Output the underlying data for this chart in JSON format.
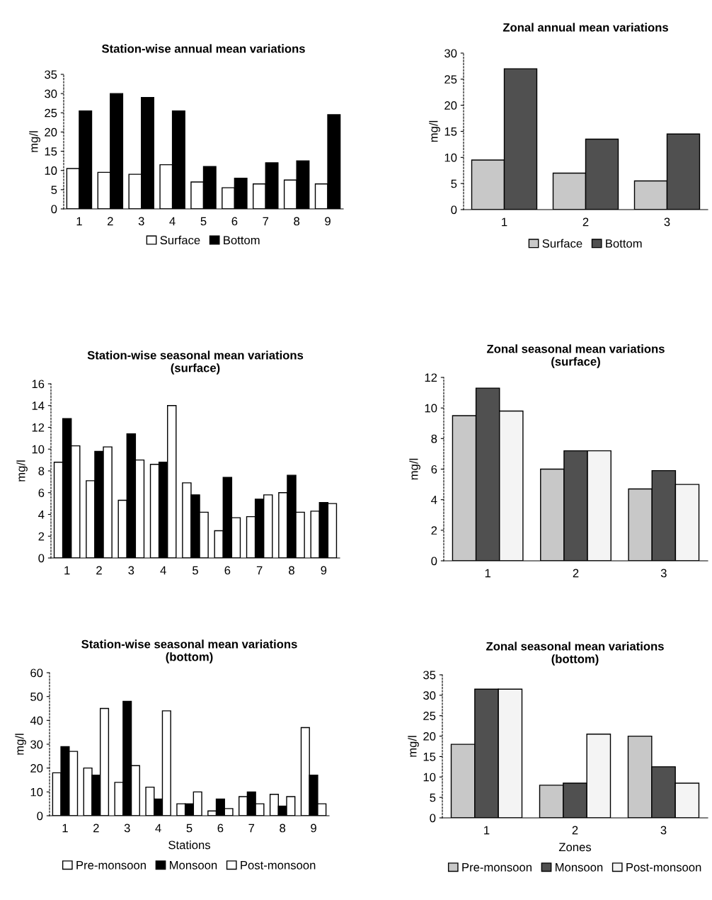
{
  "chart_data": [
    {
      "type": "bar",
      "title": "Station-wise annual mean variations",
      "ylabel": "mg/l",
      "categories": [
        "1",
        "2",
        "3",
        "4",
        "5",
        "6",
        "7",
        "8",
        "9"
      ],
      "series": [
        {
          "name": "Surface",
          "color": "#ffffff",
          "values": [
            10.5,
            9.5,
            9,
            11.5,
            7,
            5.5,
            6.5,
            7.5,
            6.5
          ]
        },
        {
          "name": "Bottom",
          "color": "#000000",
          "values": [
            25.5,
            30,
            29,
            25.5,
            11,
            8,
            12,
            12.5,
            24.5
          ]
        }
      ],
      "ylim": [
        0,
        35
      ],
      "yticks": [
        0,
        5,
        10,
        15,
        20,
        25,
        30,
        35
      ],
      "legend": "bottom"
    },
    {
      "type": "bar",
      "title": "Zonal annual mean variations",
      "ylabel": "mg/l",
      "categories": [
        "1",
        "2",
        "3"
      ],
      "series": [
        {
          "name": "Surface",
          "color": "#c8c8c8",
          "values": [
            9.5,
            7,
            5.5
          ]
        },
        {
          "name": "Bottom",
          "color": "#505050",
          "values": [
            27,
            13.5,
            14.5
          ]
        }
      ],
      "ylim": [
        0,
        30
      ],
      "yticks": [
        0,
        5,
        10,
        15,
        20,
        25,
        30
      ],
      "legend": "bottom"
    },
    {
      "type": "bar",
      "title": "Station-wise seasonal mean variations\n(surface)",
      "ylabel": "mg/l",
      "categories": [
        "1",
        "2",
        "3",
        "4",
        "5",
        "6",
        "7",
        "8",
        "9"
      ],
      "series": [
        {
          "color": "#ffffff",
          "values": [
            8.8,
            7.1,
            5.3,
            8.6,
            6.9,
            2.5,
            3.8,
            6.0,
            4.3
          ]
        },
        {
          "color": "#000000",
          "values": [
            12.8,
            9.8,
            11.4,
            8.8,
            5.8,
            7.4,
            5.4,
            7.6,
            5.1
          ]
        },
        {
          "color": "#ffffff",
          "values": [
            10.3,
            10.2,
            9.0,
            14.0,
            4.2,
            3.7,
            5.8,
            4.2,
            5.0
          ]
        }
      ],
      "ylim": [
        0,
        16
      ],
      "yticks": [
        0,
        2,
        4,
        6,
        8,
        10,
        12,
        14,
        16
      ]
    },
    {
      "type": "bar",
      "title": "Zonal seasonal mean variations\n(surface)",
      "ylabel": "mg/l",
      "categories": [
        "1",
        "2",
        "3"
      ],
      "series": [
        {
          "color": "#c8c8c8",
          "values": [
            9.5,
            6.0,
            4.7
          ]
        },
        {
          "color": "#505050",
          "values": [
            11.3,
            7.2,
            5.9
          ]
        },
        {
          "color": "#f4f4f4",
          "values": [
            9.8,
            7.2,
            5.0
          ]
        }
      ],
      "ylim": [
        0,
        12
      ],
      "yticks": [
        0,
        2,
        4,
        6,
        8,
        10,
        12
      ]
    },
    {
      "type": "bar",
      "title": "Station-wise seasonal mean variations\n(bottom)",
      "xlabel": "Stations",
      "ylabel": "mg/l",
      "categories": [
        "1",
        "2",
        "3",
        "4",
        "5",
        "6",
        "7",
        "8",
        "9"
      ],
      "series": [
        {
          "name": "Pre-monsoon",
          "color": "#ffffff",
          "values": [
            18,
            20,
            14,
            12,
            5,
            2,
            8,
            9,
            37
          ]
        },
        {
          "name": "Monsoon",
          "color": "#000000",
          "values": [
            29,
            17,
            48,
            7,
            5,
            7,
            10,
            4,
            17
          ]
        },
        {
          "name": "Post-monsoon",
          "color": "#ffffff",
          "values": [
            27,
            45,
            21,
            44,
            10,
            3,
            5,
            8,
            5
          ]
        }
      ],
      "ylim": [
        0,
        60
      ],
      "yticks": [
        0,
        10,
        20,
        30,
        40,
        50,
        60
      ],
      "legend": "bottom"
    },
    {
      "type": "bar",
      "title": "Zonal seasonal mean variations\n(bottom)",
      "xlabel": "Zones",
      "ylabel": "mg/l",
      "categories": [
        "1",
        "2",
        "3"
      ],
      "series": [
        {
          "name": "Pre-monsoon",
          "color": "#c8c8c8",
          "values": [
            18,
            8,
            20
          ]
        },
        {
          "name": "Monsoon",
          "color": "#505050",
          "values": [
            31.5,
            8.5,
            12.5
          ]
        },
        {
          "name": "Post-monsoon",
          "color": "#f4f4f4",
          "values": [
            31.5,
            20.5,
            8.5
          ]
        }
      ],
      "ylim": [
        0,
        35
      ],
      "yticks": [
        0,
        5,
        10,
        15,
        20,
        25,
        30,
        35
      ],
      "legend": "bottom"
    }
  ]
}
